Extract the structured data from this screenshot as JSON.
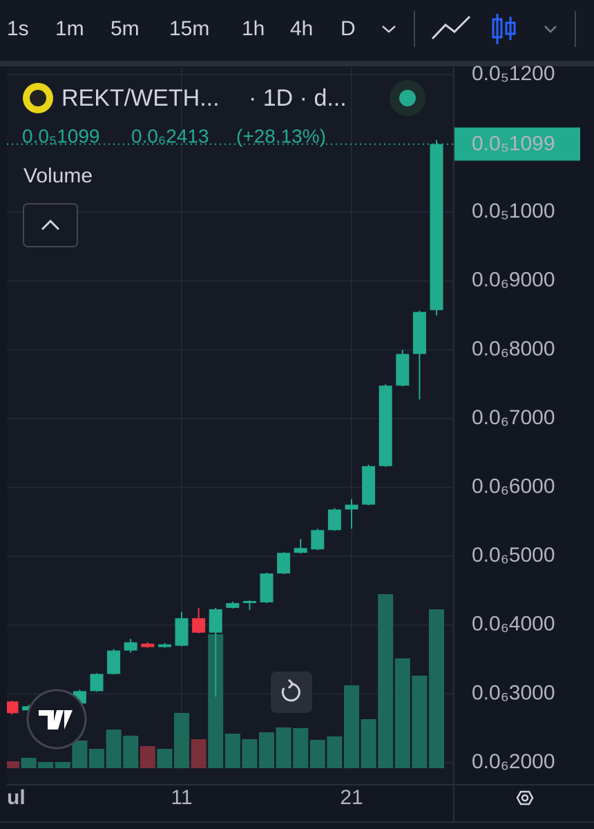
{
  "toolbar": {
    "intervals": [
      "1s",
      "1m",
      "5m",
      "15m",
      "1h",
      "4h",
      "D"
    ]
  },
  "legend": {
    "symbol": "REKT/WETH...",
    "interval": "· 1D · d...",
    "indicator": "Volume"
  },
  "chart_data": {
    "type": "candlestick",
    "categories": [
      "ul",
      null,
      null,
      null,
      null,
      null,
      null,
      null,
      null,
      null,
      "11",
      null,
      null,
      null,
      null,
      null,
      null,
      null,
      null,
      null,
      "21",
      null,
      null,
      null,
      null,
      null
    ],
    "open": [
      2.89e-07,
      2.76e-07,
      2.85e-07,
      2.95e-07,
      2.86e-07,
      3.04e-07,
      3.29e-07,
      3.63e-07,
      3.73e-07,
      3.68e-07,
      3.7e-07,
      4.1e-07,
      3.89e-07,
      4.25e-07,
      4.32e-07,
      4.33e-07,
      4.75e-07,
      5.05e-07,
      5.1e-07,
      5.38e-07,
      5.68e-07,
      5.75e-07,
      6.31e-07,
      7.48e-07,
      7.94e-07,
      8.577e-07
    ],
    "high": [
      2.9e-07,
      2.84e-07,
      2.97e-07,
      3.02e-07,
      3.06e-07,
      3.3e-07,
      3.65e-07,
      3.8e-07,
      3.75e-07,
      3.74e-07,
      4.19e-07,
      4.25e-07,
      4.25e-07,
      4.34e-07,
      4.36e-07,
      4.76e-07,
      5.06e-07,
      5.25e-07,
      5.4e-07,
      5.7e-07,
      5.83e-07,
      6.33e-07,
      7.5e-07,
      8e-07,
      8.57e-07,
      1.105e-06
    ],
    "low": [
      2.7e-07,
      2.75e-07,
      2.84e-07,
      2.94e-07,
      2.85e-07,
      3.03e-07,
      3.28e-07,
      3.6e-07,
      3.67e-07,
      3.67e-07,
      3.69e-07,
      3.88e-07,
      2.96e-07,
      4.24e-07,
      4.22e-07,
      4.32e-07,
      4.74e-07,
      5.04e-07,
      5.09e-07,
      5.37e-07,
      5.4e-07,
      5.74e-07,
      6.3e-07,
      7.47e-07,
      7.28e-07,
      8.5e-07
    ],
    "close": [
      2.72e-07,
      2.82e-07,
      2.95e-07,
      3e-07,
      3.04e-07,
      3.29e-07,
      3.63e-07,
      3.75e-07,
      3.68e-07,
      3.72e-07,
      4.1e-07,
      3.89e-07,
      4.23e-07,
      4.32e-07,
      4.35e-07,
      4.75e-07,
      5.05e-07,
      5.12e-07,
      5.38e-07,
      5.68e-07,
      5.75e-07,
      6.31e-07,
      7.48e-07,
      7.94e-07,
      8.55e-07,
      1.099e-06
    ],
    "volume": [
      10,
      15,
      9,
      9,
      40,
      28,
      56,
      47,
      32,
      28,
      80,
      42,
      194,
      50,
      42,
      52,
      59,
      58,
      41,
      46,
      120,
      71,
      252,
      159,
      134,
      230
    ],
    "volume_ylim": [
      0,
      1014
    ],
    "up_color": "#22ab8e",
    "down_color": "#f23645",
    "volume_up_color": "#1d6a5b",
    "volume_down_color": "#7b2f3a",
    "ylim": [
      1.92e-07,
      1.21e-06
    ],
    "yticks": [
      {
        "value": 1.2e-06,
        "label": "0.0₅1200"
      },
      {
        "value": 1e-06,
        "label": "0.0₅1000"
      },
      {
        "value": 9e-07,
        "label": "0.0₆9000"
      },
      {
        "value": 8e-07,
        "label": "0.0₆8000"
      },
      {
        "value": 7e-07,
        "label": "0.0₆7000"
      },
      {
        "value": 6e-07,
        "label": "0.0₆6000"
      },
      {
        "value": 5e-07,
        "label": "0.0₆5000"
      },
      {
        "value": 4e-07,
        "label": "0.0₆4000"
      },
      {
        "value": 3e-07,
        "label": "0.0₆3000"
      },
      {
        "value": 2e-07,
        "label": "0.0₆2000"
      }
    ],
    "grid": true,
    "last_price": {
      "value": 1.099e-06,
      "label": "0.0₅1099"
    },
    "change": {
      "value": 2.413e-07,
      "label": "0.0₆2413"
    },
    "change_percent": {
      "value": 28.13,
      "label": "(+28.13%)"
    }
  }
}
